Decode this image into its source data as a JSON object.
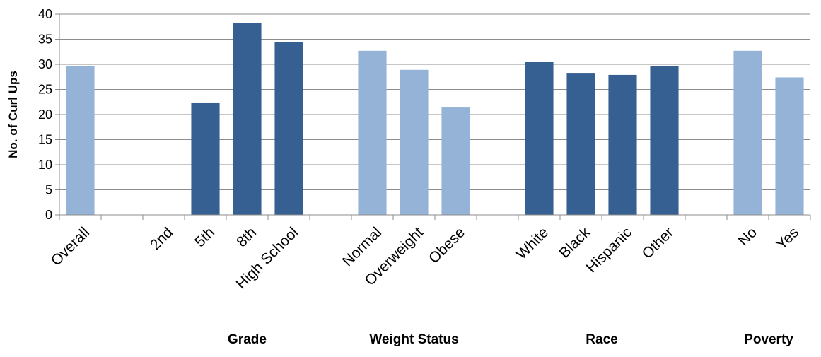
{
  "chart_data": {
    "type": "bar",
    "ylabel": "No. of Curl Ups",
    "ylim": [
      0,
      40
    ],
    "yticks": [
      "0",
      "5",
      "10",
      "15",
      "20",
      "25",
      "30",
      "35",
      "40"
    ],
    "grid": true,
    "categories": [
      "Overall",
      "",
      "2nd",
      "5th",
      "8th",
      "High School",
      "",
      "Normal",
      "Overweight",
      "Obese",
      "",
      "White",
      "Black",
      "Hispanic",
      "Other",
      "",
      "No",
      "Yes"
    ],
    "values": [
      29.6,
      null,
      null,
      22.4,
      38.2,
      34.4,
      null,
      32.7,
      28.9,
      21.4,
      null,
      30.5,
      28.3,
      27.9,
      29.6,
      null,
      32.7,
      27.4
    ],
    "bar_colors": [
      "#95B3D7",
      null,
      null,
      "#366092",
      "#366092",
      "#366092",
      null,
      "#95B3D7",
      "#95B3D7",
      "#95B3D7",
      null,
      "#366092",
      "#366092",
      "#366092",
      "#366092",
      null,
      "#95B3D7",
      "#95B3D7"
    ],
    "groups": [
      {
        "label": "Grade",
        "center_category": 4
      },
      {
        "label": "Weight Status",
        "center_category": 8
      },
      {
        "label": "Race",
        "center_category": 12.5
      },
      {
        "label": "Poverty",
        "center_category": 16.5
      }
    ]
  }
}
